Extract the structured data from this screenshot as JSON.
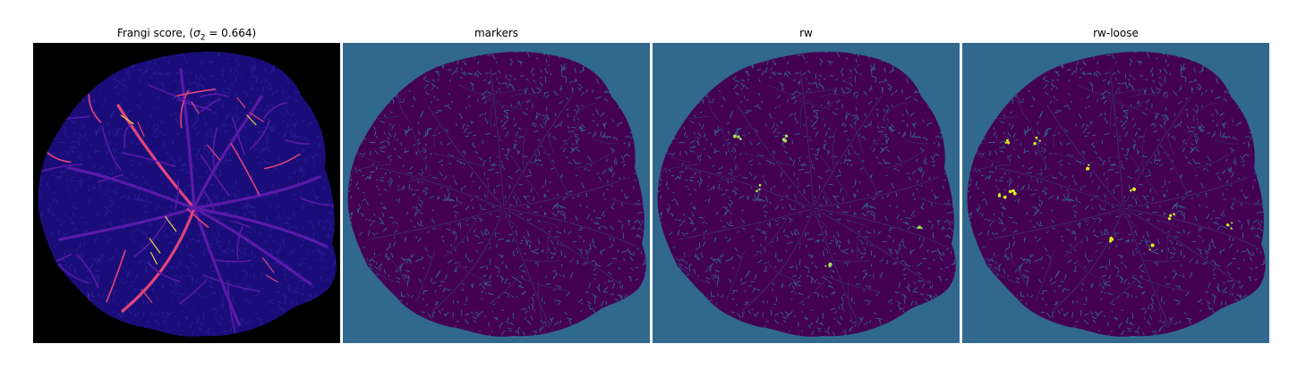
{
  "panels": [
    {
      "title_prefix": "Frangi score, (",
      "sigma_symbol": "σ",
      "sigma_sub": "2",
      "sigma_eq": " = 0.664)",
      "background": "#000000",
      "tissue": "#1a0d7a",
      "vessel": "#5a1aa8",
      "highlight": "#f5d04a",
      "accent": "#e0457b"
    },
    {
      "title": "markers",
      "background": "#31688e",
      "tissue": "#440154",
      "vessel": "#3b528b",
      "highlight": "#35b779"
    },
    {
      "title": "rw",
      "background": "#31688e",
      "tissue": "#440154",
      "vessel": "#3b528b",
      "highlight": "#a8e25a"
    },
    {
      "title": "rw-loose",
      "background": "#31688e",
      "tissue": "#440154",
      "vessel": "#3b528b",
      "highlight": "#d8f01a"
    }
  ]
}
